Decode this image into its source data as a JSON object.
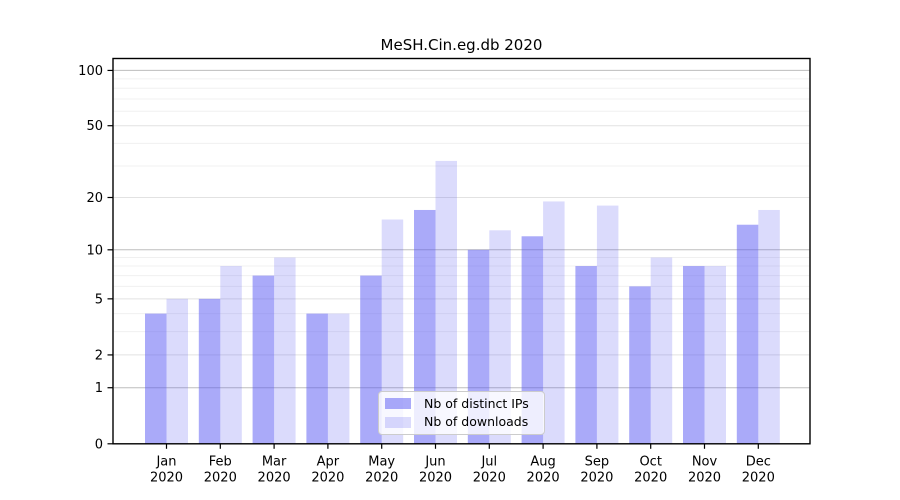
{
  "chart_data": {
    "type": "bar",
    "title": "MeSH.Cin.eg.db 2020",
    "categories": [
      "Jan",
      "Feb",
      "Mar",
      "Apr",
      "May",
      "Jun",
      "Jul",
      "Aug",
      "Sep",
      "Oct",
      "Nov",
      "Dec"
    ],
    "category_year_line": "2020",
    "series": [
      {
        "name": "Nb of distinct IPs",
        "color": "#5555f3",
        "opacity": 0.5,
        "values": [
          4,
          5,
          7,
          4,
          7,
          17,
          10,
          12,
          8,
          6,
          8,
          14
        ]
      },
      {
        "name": "Nb of downloads",
        "color": "#5555f3",
        "opacity": 0.21,
        "values": [
          5,
          8,
          9,
          4,
          15,
          32,
          13,
          19,
          18,
          9,
          8,
          17
        ]
      }
    ],
    "xlabel": "",
    "ylabel": "",
    "yscale": "log1p",
    "ylim": [
      0,
      100
    ],
    "ytick_labels": [
      "100",
      "50",
      "20",
      "10",
      "5",
      "2",
      "1",
      "0"
    ],
    "ytick_values": [
      100,
      50,
      20,
      10,
      5,
      2,
      1,
      0
    ],
    "grid": "on",
    "legend_position": "lower-center"
  },
  "colors": {
    "background": "#ffffff",
    "axis": "#000000",
    "tick_text": "#000000",
    "grid_decade": "#bdbdbd",
    "grid_labeled": "#e2e2e2",
    "grid_minor": "#f0f0f0",
    "bar_base": "#5555f3",
    "legend_border": "#cccccc"
  }
}
